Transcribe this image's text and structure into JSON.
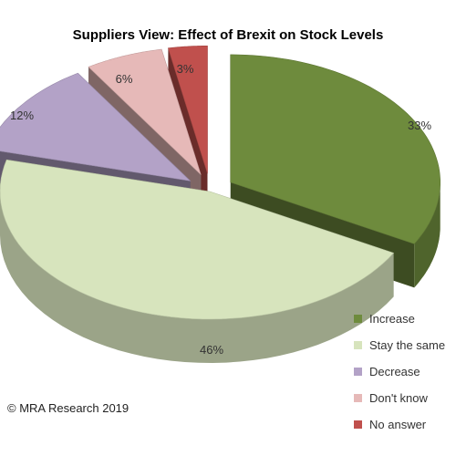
{
  "chart_data": {
    "type": "pie",
    "title": "Suppliers View: Effect of Brexit on Stock Levels",
    "slices": [
      {
        "label": "Increase",
        "value": 33,
        "value_label": "33%",
        "color": "#6e8b3d",
        "exploded": true
      },
      {
        "label": "Stay the same",
        "value": 46,
        "value_label": "46%",
        "color": "#d7e4bd",
        "exploded": false
      },
      {
        "label": "Decrease",
        "value": 12,
        "value_label": "12%",
        "color": "#b3a2c7",
        "exploded": true
      },
      {
        "label": "Don't know",
        "value": 6,
        "value_label": "6%",
        "color": "#e6b9b8",
        "exploded": true
      },
      {
        "label": "No answer",
        "value": 3,
        "value_label": "3%",
        "color": "#c0504d",
        "exploded": true
      }
    ],
    "legend_position": "bottom-right",
    "style": "3d-exploded"
  },
  "footer": {
    "copyright": "© MRA Research 2019"
  }
}
